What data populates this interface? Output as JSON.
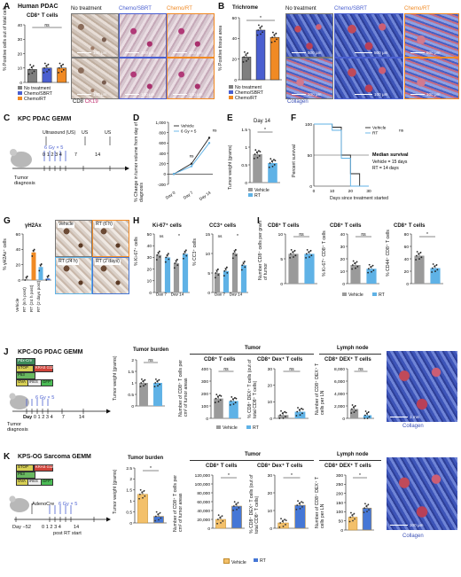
{
  "panels": {
    "A": {
      "label": "A",
      "title": "Human PDAC",
      "ylabel": "% Positive cells out of total cells",
      "chart_title": "CD8⁺ T cells",
      "ns": "ns",
      "img_titles": [
        "No treatment",
        "Chemo/SBRT",
        "Chemo/RT"
      ],
      "stain": "CD8",
      "stain2": "CK19",
      "scale": "100 μm",
      "legend": [
        "No treatment",
        "Chemo/SBRT",
        "Chemo/RT"
      ]
    },
    "B": {
      "label": "B",
      "chart_title": "Trichrome",
      "ylabel": "% Positive tissue area",
      "star": "*",
      "img_titles": [
        "No treatment",
        "Chemo/SBRT",
        "Chemo/RT"
      ],
      "scale_top": "500 μm",
      "scale_bot": "100 μm",
      "collagen": "Collagen",
      "legend": [
        "No treatment",
        "Chemo/SBRT",
        "Chemo/RT"
      ]
    },
    "C": {
      "label": "C",
      "title": "KPC PDAC GEMM",
      "us": "Ultrasound (US)",
      "us2": "US",
      "us3": "US",
      "dose": "6 Gy × 5",
      "days": [
        "0",
        "1",
        "2",
        "3",
        "4",
        "7",
        "14"
      ],
      "diag": "Tumor diagnosis"
    },
    "D": {
      "label": "D",
      "ylabel": "% Change in tumor volume from day of diagnosis",
      "legend": [
        "Vehicle",
        "6 Gy × 5"
      ],
      "ns": "ns",
      "days": [
        "Day 0",
        "Day 7",
        "Day 14"
      ]
    },
    "E": {
      "label": "E",
      "title": "Day 14",
      "ylabel": "Tumor weight (grams)",
      "star": "*",
      "legend": [
        "Vehicle",
        "RT"
      ]
    },
    "F": {
      "label": "F",
      "ylabel": "Percent survival",
      "xlabel": "Days since treatment started",
      "legend": [
        "Vehicle",
        "RT"
      ],
      "ns": "ns",
      "median_title": "Median survival",
      "median1": "Vehicle = 15 days",
      "median2": "RT = 14 days"
    },
    "G": {
      "label": "G",
      "title": "γH2Ax",
      "ylabel": "% γH2Ax⁺ cells",
      "cats": [
        "Vehicle",
        "RT (6 h post)",
        "RT (24 h post)",
        "RT (2 days post)"
      ],
      "img_titles": [
        "Vehicle",
        "RT (6 h)",
        "RT (24 h)",
        "RT (2 days)"
      ]
    },
    "H": {
      "label": "H",
      "t1": "Ki-67⁺ cells",
      "t2": "CC3⁺ cells",
      "y1": "% Ki-67⁺ cells",
      "y2": "% CC3⁺ cells",
      "ns": "ns",
      "star": "*",
      "days": [
        "Day 7",
        "Day 14"
      ]
    },
    "I": {
      "label": "I",
      "t1": "CD8⁺ T cells",
      "t2": "CD8⁺ T cells",
      "t3": "CD8⁺ T cells",
      "y1": "Number CD8⁺ cells per gram of tumor",
      "y2": "% Ki-67⁺ CD8⁺ T cells",
      "y3": "% CD44⁺ CD8⁺ T cells",
      "ns": "ns",
      "star": "*",
      "legend": [
        "Vehicle",
        "RT"
      ]
    },
    "J": {
      "label": "J",
      "title": "KPC-OG PDAC GEMM",
      "alleles": [
        "Pdx-Cre",
        "STOP",
        "KRAS G12D",
        "P53",
        "OVA",
        "IRES",
        "GFP"
      ],
      "dose": "6 Gy × 5",
      "days": [
        "Day",
        "0",
        "1",
        "2",
        "3",
        "4",
        "7",
        "14"
      ],
      "diag": "Tumor diagnosis",
      "burden": "Tumor burden",
      "tumor": "Tumor",
      "lymph": "Lymph node",
      "c1": "CD8⁺ T cells",
      "c2": "CD8⁺ Dex⁺ T cells",
      "c3": "CD8⁺ DEX⁺ T cells",
      "y1": "Tumor weight (grams)",
      "y2": "Number of CD8⁺ T cells per cm² of tumor areas",
      "y3": "% CD8⁺ DEX⁺ T cells (out of total CD8⁺ T cells)",
      "y4": "Number of CD8⁺ DEX⁺ T cells per LN",
      "ns": "ns",
      "legend": [
        "Vehicle",
        "RT"
      ],
      "collagen": "Collagen",
      "scale": "1 mm"
    },
    "K": {
      "label": "K",
      "title": "KPS-OG Sarcoma GEMM",
      "alleles": [
        "STOP",
        "KRAS G12D",
        "P53",
        "OVA",
        "IRES",
        "GFP"
      ],
      "ad": "AdenoCre",
      "dose": "6 Gy × 5",
      "days": [
        "Day −52",
        "0",
        "1",
        "2",
        "3",
        "4",
        "14"
      ],
      "post": "post RT start",
      "burden": "Tumor burden",
      "tumor": "Tumor",
      "lymph": "Lymph node",
      "c1": "CD8⁺ T cells",
      "c2": "CD8⁺ Dex⁺ T cells",
      "c3": "CD8⁺ DEX⁺ T cells",
      "y1": "Tumor weight (grams)",
      "y2": "Number of CD8⁺ T cells per cm² of tumor areas",
      "y3": "% CD8⁺ DEX⁺ T cells (out of total CD8⁺ T cells)",
      "y4": "Number of CD8⁺ DEX⁺ T cells per LN",
      "star": "*",
      "legend": [
        "Vehicle",
        "RT"
      ],
      "collagen": "Collagen",
      "scale": "100 μm",
      "yticks2": [
        "0",
        "20,000",
        "40,000",
        "60,000",
        "80,000",
        "100,000",
        "120,000"
      ]
    }
  },
  "colors": {
    "no_treatment": "#7f7f7f",
    "chemo_sbrt": "#4a5fd0",
    "chemo_rt": "#f08a24",
    "vehicle": "#9a9a9a",
    "rt": "#5fb2e6",
    "k_vehicle": "#f3c06a",
    "k_rt": "#4577d6",
    "collagen": "#3a4fb6"
  },
  "chart_data": [
    {
      "panel": "A",
      "type": "bar",
      "categories": [
        "No treatment",
        "Chemo/SBRT",
        "Chemo/RT"
      ],
      "values": [
        9,
        10,
        10
      ],
      "ylim": [
        0,
        40
      ],
      "yticks": [
        0,
        10,
        20,
        30,
        40
      ]
    },
    {
      "panel": "B",
      "type": "bar",
      "categories": [
        "No treatment",
        "Chemo/SBRT",
        "Chemo/RT"
      ],
      "values": [
        22,
        48,
        41
      ],
      "ylim": [
        0,
        60
      ],
      "yticks": [
        0,
        20,
        40,
        60
      ]
    },
    {
      "panel": "D",
      "type": "line",
      "x": [
        "Day 0",
        "Day 7",
        "Day 14"
      ],
      "series": [
        {
          "name": "Vehicle",
          "values": [
            0,
            200,
            700
          ]
        },
        {
          "name": "6 Gy × 5",
          "values": [
            0,
            150,
            600
          ]
        }
      ],
      "ylim": [
        -200,
        1000
      ],
      "yticks": [
        -200,
        0,
        200,
        400,
        600,
        800,
        1000
      ]
    },
    {
      "panel": "E",
      "type": "bar",
      "categories": [
        "Vehicle",
        "RT"
      ],
      "values": [
        0.8,
        0.55
      ],
      "ylim": [
        0,
        1.5
      ],
      "yticks": [
        0,
        0.5,
        1.0,
        1.5
      ]
    },
    {
      "panel": "F",
      "type": "line",
      "x": [
        0,
        5,
        10,
        15,
        20,
        25,
        30
      ],
      "series": [
        {
          "name": "Vehicle",
          "values": [
            100,
            100,
            95,
            50,
            20,
            0,
            0
          ]
        },
        {
          "name": "RT",
          "values": [
            100,
            100,
            90,
            45,
            0,
            0,
            0
          ]
        }
      ],
      "ylim": [
        0,
        100
      ],
      "yticks": [
        0,
        50,
        100
      ],
      "xticks": [
        0,
        10,
        20,
        30
      ]
    },
    {
      "panel": "G",
      "type": "bar",
      "categories": [
        "Vehicle",
        "RT (6 h post)",
        "RT (24 h post)",
        "RT (2 days post)"
      ],
      "values": [
        1,
        36,
        17,
        2
      ],
      "ylim": [
        0,
        60
      ],
      "yticks": [
        0,
        20,
        40,
        60
      ]
    },
    {
      "panel": "H1",
      "type": "bar",
      "categories": [
        "Day 7 Vehicle",
        "Day 7 RT",
        "Day 14 Vehicle",
        "Day 14 RT"
      ],
      "values": [
        32,
        30,
        25,
        33
      ],
      "ylim": [
        0,
        50
      ],
      "yticks": [
        0,
        10,
        20,
        30,
        40,
        50
      ]
    },
    {
      "panel": "H2",
      "type": "bar",
      "categories": [
        "Day 7 Vehicle",
        "Day 7 RT",
        "Day 14 Vehicle",
        "Day 14 RT"
      ],
      "values": [
        5,
        5.5,
        10,
        7
      ],
      "ylim": [
        0,
        15
      ],
      "yticks": [
        0,
        5,
        10,
        15
      ]
    },
    {
      "panel": "I1",
      "type": "bar",
      "categories": [
        "Vehicle",
        "RT"
      ],
      "values": [
        6,
        6
      ],
      "ylim": [
        0,
        10
      ],
      "yticks": [
        0,
        5,
        10
      ]
    },
    {
      "panel": "I2",
      "type": "bar",
      "categories": [
        "Vehicle",
        "RT"
      ],
      "values": [
        15,
        12
      ],
      "ylim": [
        0,
        40
      ],
      "yticks": [
        0,
        10,
        20,
        30,
        40
      ]
    },
    {
      "panel": "I3",
      "type": "bar",
      "categories": [
        "Vehicle",
        "RT"
      ],
      "values": [
        45,
        25
      ],
      "ylim": [
        0,
        80
      ],
      "yticks": [
        0,
        20,
        40,
        60,
        80
      ]
    },
    {
      "panel": "J1",
      "type": "bar",
      "categories": [
        "Vehicle",
        "RT"
      ],
      "values": [
        1.0,
        1.0
      ],
      "ylim": [
        0,
        2.0
      ],
      "yticks": [
        0,
        0.5,
        1.0,
        1.5,
        2.0
      ]
    },
    {
      "panel": "J2",
      "type": "bar",
      "categories": [
        "Vehicle",
        "RT"
      ],
      "values": [
        160,
        140
      ],
      "ylim": [
        0,
        400
      ],
      "yticks": [
        0,
        100,
        200,
        300,
        400
      ]
    },
    {
      "panel": "J3",
      "type": "bar",
      "categories": [
        "Vehicle",
        "RT"
      ],
      "values": [
        2,
        4
      ],
      "ylim": [
        0,
        30
      ],
      "yticks": [
        0,
        10,
        20,
        30
      ]
    },
    {
      "panel": "J4",
      "type": "bar",
      "categories": [
        "Vehicle",
        "RT"
      ],
      "values": [
        1500,
        500
      ],
      "ylim": [
        0,
        8000
      ],
      "yticks": [
        0,
        2000,
        4000,
        6000,
        8000
      ]
    },
    {
      "panel": "K1",
      "type": "bar",
      "categories": [
        "Vehicle",
        "RT"
      ],
      "values": [
        1.3,
        0.3
      ],
      "ylim": [
        0,
        2.5
      ],
      "yticks": [
        0,
        0.5,
        1.0,
        1.5,
        2.0,
        2.5
      ]
    },
    {
      "panel": "K2",
      "type": "bar",
      "categories": [
        "Vehicle",
        "RT"
      ],
      "values": [
        20000,
        50000
      ],
      "ylim": [
        0,
        120000
      ],
      "yticks": [
        0,
        20000,
        40000,
        60000,
        80000,
        100000,
        120000
      ]
    },
    {
      "panel": "K3",
      "type": "bar",
      "categories": [
        "Vehicle",
        "RT"
      ],
      "values": [
        3,
        13
      ],
      "ylim": [
        0,
        30
      ],
      "yticks": [
        0,
        10,
        20,
        30
      ]
    },
    {
      "panel": "K4",
      "type": "bar",
      "categories": [
        "Vehicle",
        "RT"
      ],
      "values": [
        70,
        120
      ],
      "ylim": [
        0,
        300
      ],
      "yticks": [
        0,
        50,
        100,
        150,
        200,
        250,
        300
      ]
    }
  ]
}
